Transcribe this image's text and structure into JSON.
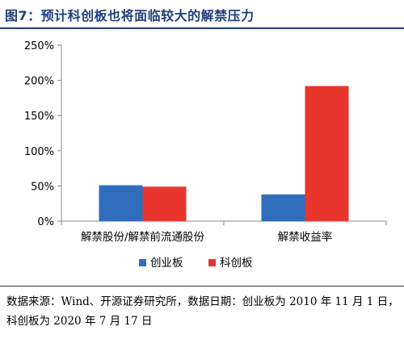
{
  "header": {
    "title": "图7：预计科创板也将面临较大的解禁压力"
  },
  "chart_data": {
    "type": "bar",
    "categories": [
      "解禁股份/解禁前流通股份",
      "解禁收益率"
    ],
    "series": [
      {
        "name": "创业板",
        "values": [
          51,
          38
        ],
        "color": "#2f6ebd"
      },
      {
        "name": "科创板",
        "values": [
          49,
          192
        ],
        "color": "#e8362d"
      }
    ],
    "ylim": [
      0,
      250
    ],
    "yticks": [
      "0%",
      "50%",
      "100%",
      "150%",
      "200%",
      "250%"
    ],
    "ytick_values": [
      0,
      50,
      100,
      150,
      200,
      250
    ],
    "grid": false,
    "legend": "bottom-center"
  },
  "footer": {
    "source": "数据来源：Wind、开源证券研究所，数据日期：创业板为 2010 年 11 月 1 日，科创板为 2020 年 7 月 17 日"
  }
}
